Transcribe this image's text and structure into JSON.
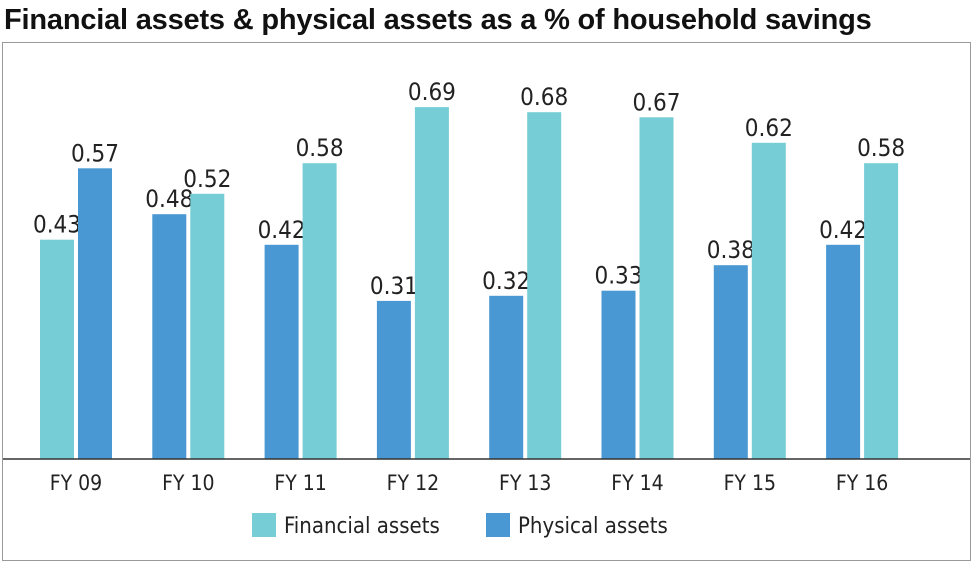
{
  "chart_data": {
    "type": "bar",
    "title": "Financial assets & physical assets as a % of household savings",
    "categories": [
      "FY 09",
      "FY 10",
      "FY 11",
      "FY 12",
      "FY 13",
      "FY 14",
      "FY 15",
      "FY 16"
    ],
    "series": [
      {
        "name": "Financial assets",
        "values": [
          0.43,
          0.52,
          0.58,
          0.69,
          0.68,
          0.67,
          0.62,
          0.58
        ],
        "color": "#76cdd6"
      },
      {
        "name": "Physical assets",
        "values": [
          0.57,
          0.48,
          0.42,
          0.31,
          0.32,
          0.33,
          0.38,
          0.42
        ],
        "color": "#4a98d3"
      }
    ],
    "bar_order": [
      [
        "Financial assets",
        "Physical assets"
      ],
      [
        "Physical assets",
        "Financial assets"
      ],
      [
        "Physical assets",
        "Financial assets"
      ],
      [
        "Physical assets",
        "Financial assets"
      ],
      [
        "Physical assets",
        "Financial assets"
      ],
      [
        "Physical assets",
        "Financial assets"
      ],
      [
        "Physical assets",
        "Financial assets"
      ],
      [
        "Physical assets",
        "Financial assets"
      ]
    ],
    "ylim": [
      0,
      0.8
    ],
    "xlabel": "",
    "ylabel": "",
    "grid": false,
    "legend": "bottom-center"
  }
}
